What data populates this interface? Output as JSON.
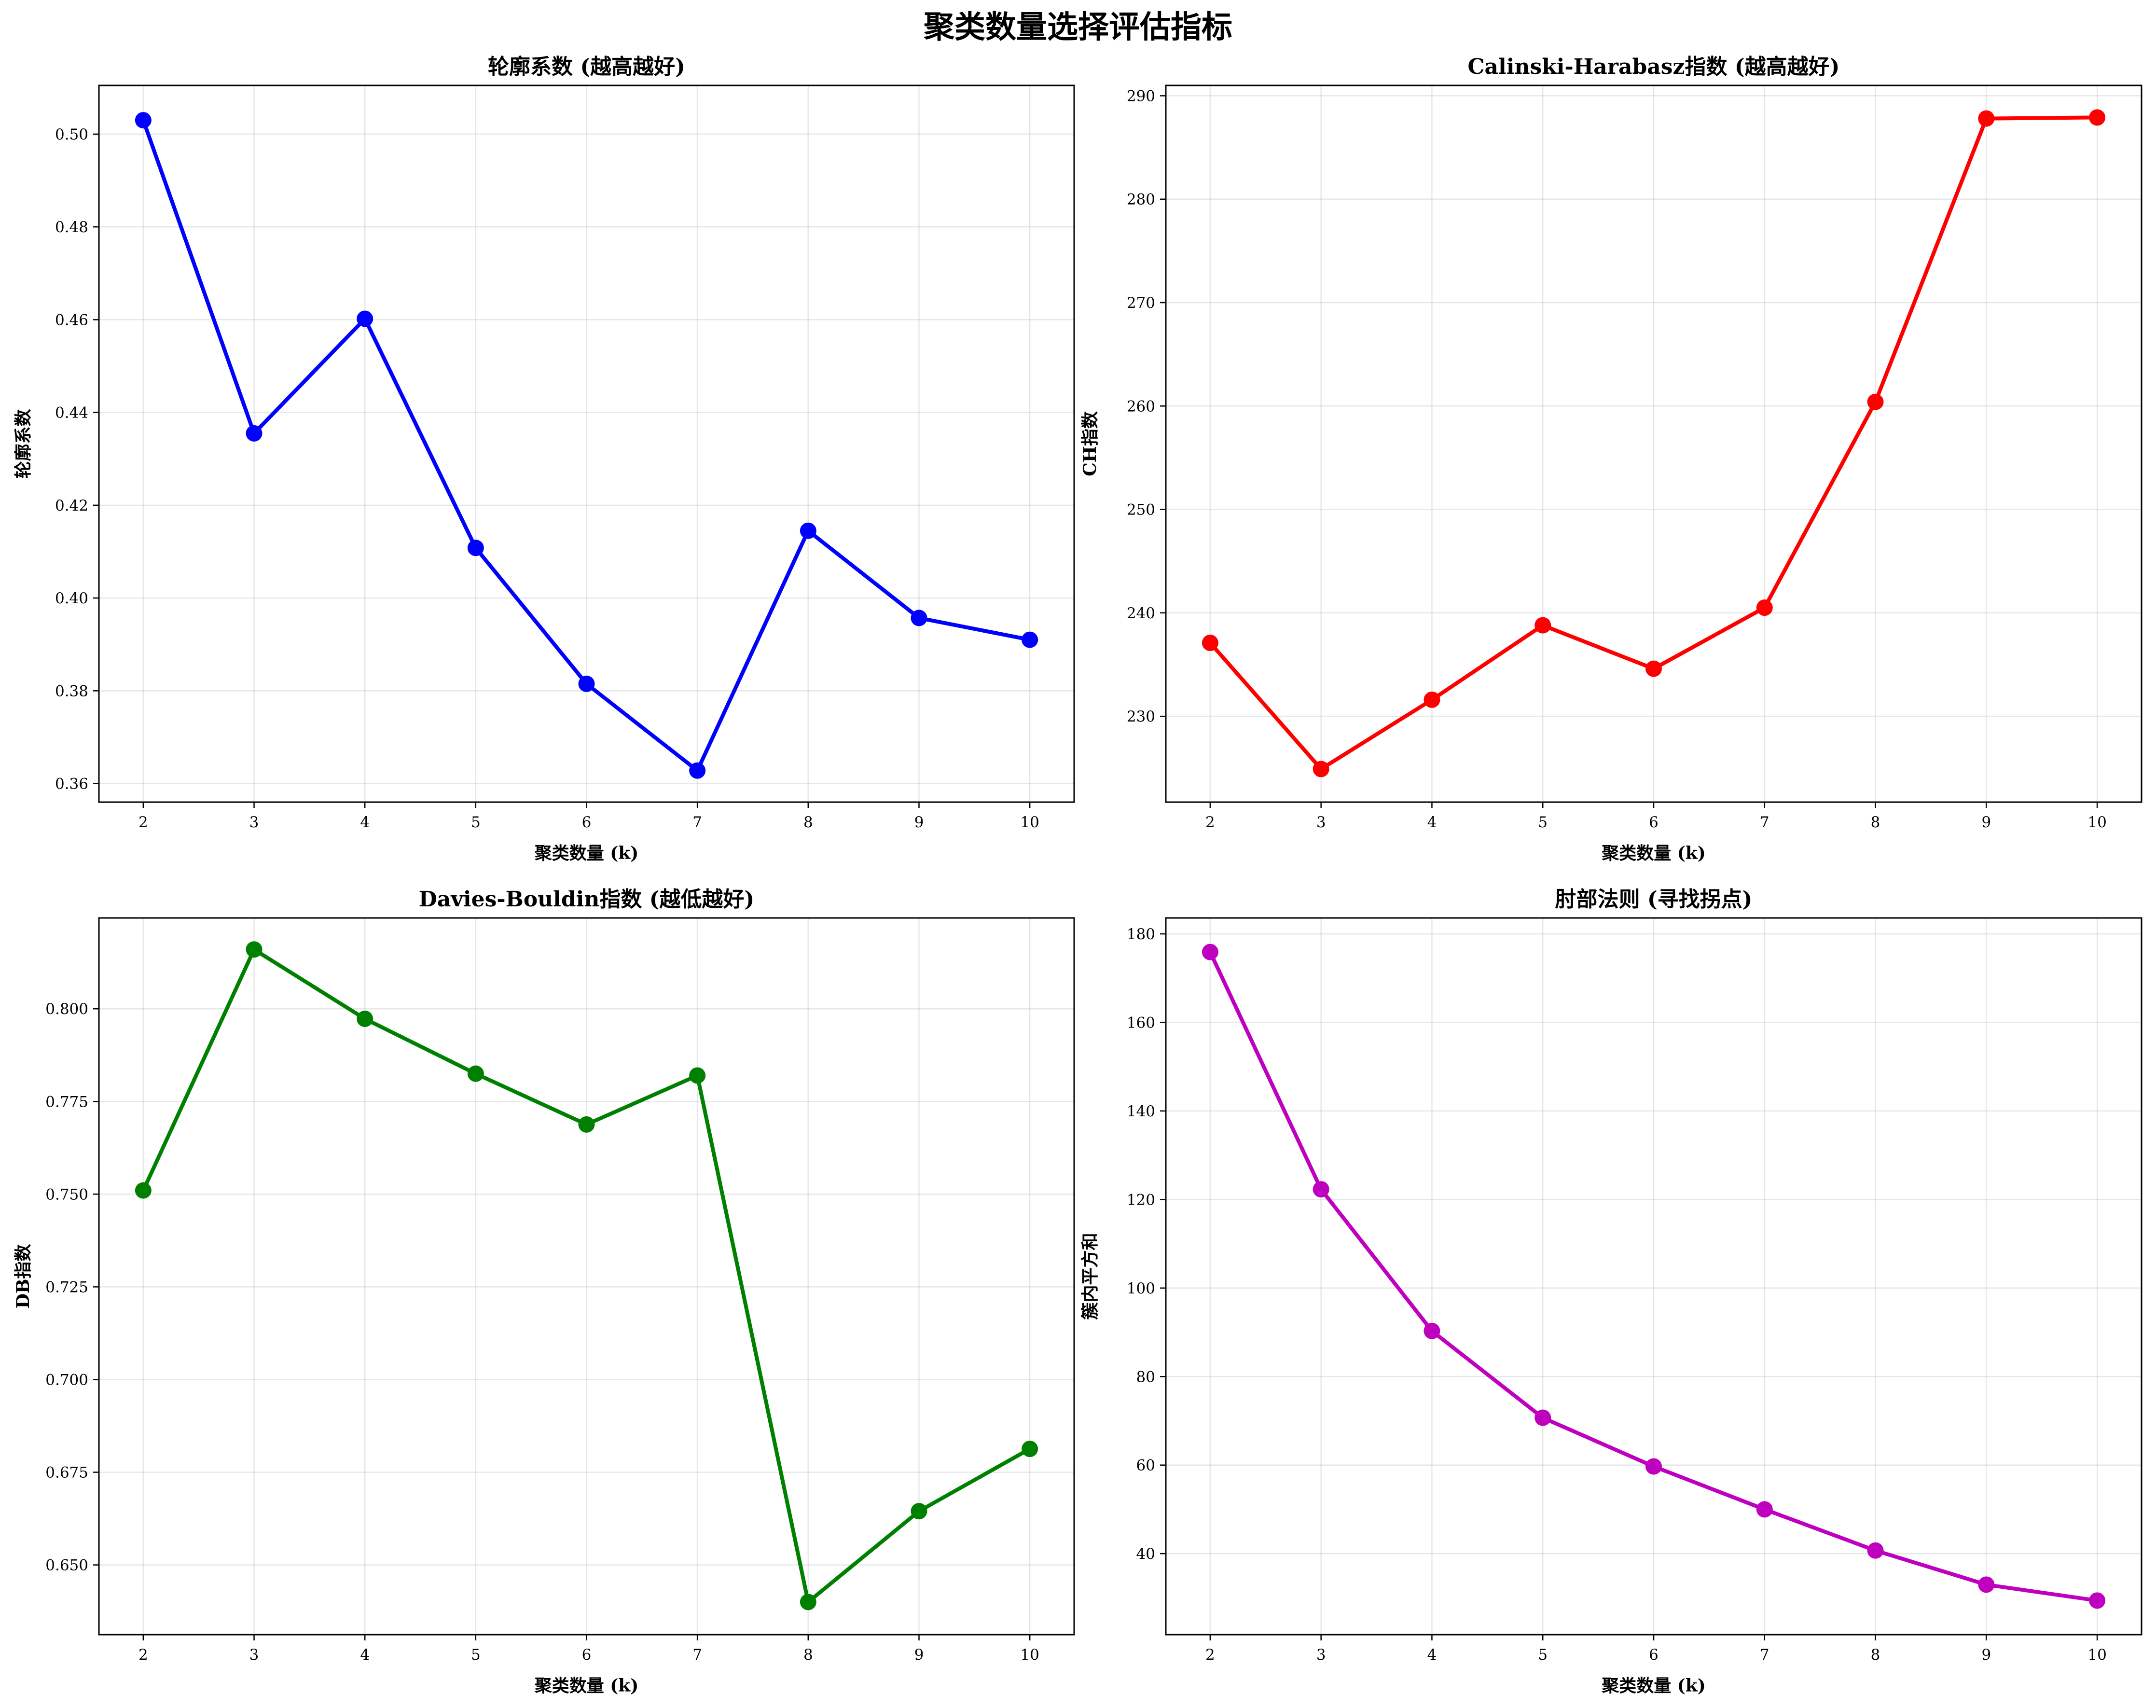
{
  "suptitle": "聚类数量选择评估指标",
  "chart_data": [
    {
      "type": "line",
      "title": "轮廓系数 (越高越好)",
      "xlabel": "聚类数量 (k)",
      "ylabel": "轮廓系数",
      "x": [
        2,
        3,
        4,
        5,
        6,
        7,
        8,
        9,
        10
      ],
      "values": [
        0.503,
        0.4355,
        0.4602,
        0.4108,
        0.3815,
        0.3628,
        0.4145,
        0.3957,
        0.391
      ],
      "color": "#0000ff",
      "xlim": [
        1.6,
        10.4
      ],
      "ylim": [
        0.356,
        0.5105
      ],
      "yticks": [
        0.36,
        0.38,
        0.4,
        0.42,
        0.44,
        0.46,
        0.48,
        0.5
      ],
      "ytick_labels": [
        "0.36",
        "0.38",
        "0.40",
        "0.42",
        "0.44",
        "0.46",
        "0.48",
        "0.50"
      ],
      "grid": true
    },
    {
      "type": "line",
      "title": "Calinski-Harabasz指数 (越高越好)",
      "xlabel": "聚类数量 (k)",
      "ylabel": "CH指数",
      "x": [
        2,
        3,
        4,
        5,
        6,
        7,
        8,
        9,
        10
      ],
      "values": [
        237.1,
        224.9,
        231.6,
        238.8,
        234.6,
        240.5,
        260.4,
        287.8,
        287.9
      ],
      "color": "#ff0000",
      "xlim": [
        1.6,
        10.4
      ],
      "ylim": [
        221.7,
        291.0
      ],
      "yticks": [
        230,
        240,
        250,
        260,
        270,
        280,
        290
      ],
      "ytick_labels": [
        "230",
        "240",
        "250",
        "260",
        "270",
        "280",
        "290"
      ],
      "grid": true
    },
    {
      "type": "line",
      "title": "Davies-Bouldin指数 (越低越好)",
      "xlabel": "聚类数量 (k)",
      "ylabel": "DB指数",
      "x": [
        2,
        3,
        4,
        5,
        6,
        7,
        8,
        9,
        10
      ],
      "values": [
        0.751,
        0.816,
        0.7973,
        0.7825,
        0.7688,
        0.782,
        0.64,
        0.6645,
        0.6813
      ],
      "color": "#008000",
      "xlim": [
        1.6,
        10.4
      ],
      "ylim": [
        0.6312,
        0.8245
      ],
      "yticks": [
        0.65,
        0.675,
        0.7,
        0.725,
        0.75,
        0.775,
        0.8
      ],
      "ytick_labels": [
        "0.650",
        "0.675",
        "0.700",
        "0.725",
        "0.750",
        "0.775",
        "0.800"
      ],
      "grid": true
    },
    {
      "type": "line",
      "title": "肘部法则 (寻找拐点)",
      "xlabel": "聚类数量 (k)",
      "ylabel": "簇内平方和",
      "x": [
        2,
        3,
        4,
        5,
        6,
        7,
        8,
        9,
        10
      ],
      "values": [
        175.9,
        122.3,
        90.3,
        70.7,
        59.7,
        50.0,
        40.7,
        33.0,
        29.4
      ],
      "color": "#bf00bf",
      "xlim": [
        1.6,
        10.4
      ],
      "ylim": [
        21.7,
        183.6
      ],
      "yticks": [
        40,
        60,
        80,
        100,
        120,
        140,
        160,
        180
      ],
      "ytick_labels": [
        "40",
        "60",
        "80",
        "100",
        "120",
        "140",
        "160",
        "180"
      ],
      "grid": true
    }
  ]
}
